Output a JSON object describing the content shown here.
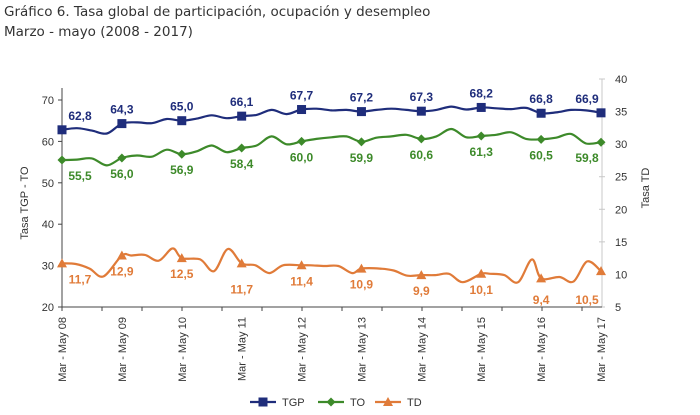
{
  "header": {
    "title": "Gráfico 6. Tasa global de participación, ocupación y desempleo",
    "subtitle": "Marzo - mayo (2008 - 2017)"
  },
  "chart_data": {
    "type": "line",
    "title": "Gráfico 6. Tasa global de participación, ocupación y desempleo",
    "subtitle": "Marzo - mayo (2008 - 2017)",
    "categories": [
      "Mar - May 08",
      "Mar - May 09",
      "Mar - May 10",
      "Mar - May 11",
      "Mar - May 12",
      "Mar - May 13",
      "Mar - May 14",
      "Mar - May 15",
      "Mar - May 16",
      "Mar - May 17"
    ],
    "ylabel": "Tasa  TGP - TO",
    "y2label": "Tasa TD",
    "ylim": [
      20,
      70
    ],
    "yticks": [
      20,
      30,
      40,
      50,
      60,
      70
    ],
    "y2lim": [
      5,
      40
    ],
    "y2ticks": [
      5,
      10,
      15,
      20,
      25,
      30,
      35,
      40
    ],
    "legend_position": "bottom",
    "grid": false,
    "series": [
      {
        "name": "TGP",
        "axis": "left",
        "color": "#1f2d7b",
        "marker": "square",
        "values": [
          62.8,
          64.3,
          65.0,
          66.1,
          67.7,
          67.2,
          67.3,
          68.2,
          66.8,
          66.9
        ],
        "labels": [
          "62,8",
          "64,3",
          "65,0",
          "66,1",
          "67,7",
          "67,2",
          "67,3",
          "68,2",
          "66,8",
          "66,9"
        ],
        "label_pos": [
          "above",
          "above",
          "above",
          "above",
          "above",
          "above",
          "above",
          "above",
          "above",
          "above"
        ],
        "path": [
          62.8,
          63.2,
          62.6,
          61.9,
          64.3,
          64.6,
          64.4,
          65.4,
          65.0,
          65.5,
          66.3,
          65.6,
          66.1,
          66.4,
          67.6,
          66.6,
          67.7,
          67.9,
          67.5,
          67.6,
          67.2,
          67.6,
          67.9,
          67.6,
          67.3,
          67.6,
          68.4,
          67.7,
          68.2,
          68.0,
          67.8,
          68.1,
          66.8,
          67.0,
          67.6,
          67.5,
          66.9
        ]
      },
      {
        "name": "TO",
        "axis": "left",
        "color": "#3d8a2a",
        "marker": "diamond",
        "values": [
          55.5,
          56.0,
          56.9,
          58.4,
          60.0,
          59.9,
          60.6,
          61.3,
          60.5,
          59.8
        ],
        "labels": [
          "55,5",
          "56,0",
          "56,9",
          "58,4",
          "60,0",
          "59,9",
          "60,6",
          "61,3",
          "60,5",
          "59,8"
        ],
        "label_pos": [
          "below",
          "below",
          "below",
          "below",
          "below",
          "below",
          "below",
          "below",
          "below",
          "below"
        ],
        "path": [
          55.5,
          55.6,
          55.9,
          54.2,
          56.0,
          56.6,
          56.3,
          58.0,
          56.9,
          57.6,
          59.0,
          57.4,
          58.4,
          59.0,
          61.2,
          59.3,
          60.0,
          60.6,
          61.0,
          61.2,
          59.9,
          60.9,
          61.2,
          61.6,
          60.6,
          61.2,
          63.0,
          61.0,
          61.3,
          61.6,
          62.2,
          60.6,
          60.5,
          60.9,
          61.8,
          59.5,
          59.8
        ]
      },
      {
        "name": "TD",
        "axis": "right",
        "color": "#e07b39",
        "marker": "triangle",
        "values": [
          11.7,
          12.9,
          12.5,
          11.7,
          11.4,
          10.9,
          9.9,
          10.1,
          9.4,
          10.5
        ],
        "labels": [
          "11,7",
          "12,9",
          "12,5",
          "11,7",
          "11,4",
          "10,9",
          "9,9",
          "10,1",
          "9,4",
          "10,5"
        ],
        "label_pos": [
          "below",
          "below",
          "below",
          "below",
          "below",
          "below",
          "below",
          "below",
          "below",
          "below"
        ],
        "path": [
          11.7,
          11.6,
          10.9,
          9.7,
          14.3,
          12.9,
          13.0,
          12.1,
          14.0,
          12.5,
          12.3,
          10.5,
          13.9,
          11.7,
          11.4,
          10.2,
          11.4,
          13.0,
          11.4,
          11.3,
          11.3,
          10.2,
          13.2,
          10.9,
          10.6,
          9.8,
          12.5,
          9.9,
          10.1,
          8.8,
          11.0,
          10.1,
          9.9,
          8.8,
          12.3,
          9.4,
          9.6,
          8.9,
          12.0,
          10.5
        ]
      }
    ]
  },
  "legend": {
    "items": [
      {
        "label": "TGP",
        "icon": "square-marker-line-icon"
      },
      {
        "label": "TO",
        "icon": "diamond-marker-line-icon"
      },
      {
        "label": "TD",
        "icon": "triangle-marker-line-icon"
      }
    ]
  }
}
